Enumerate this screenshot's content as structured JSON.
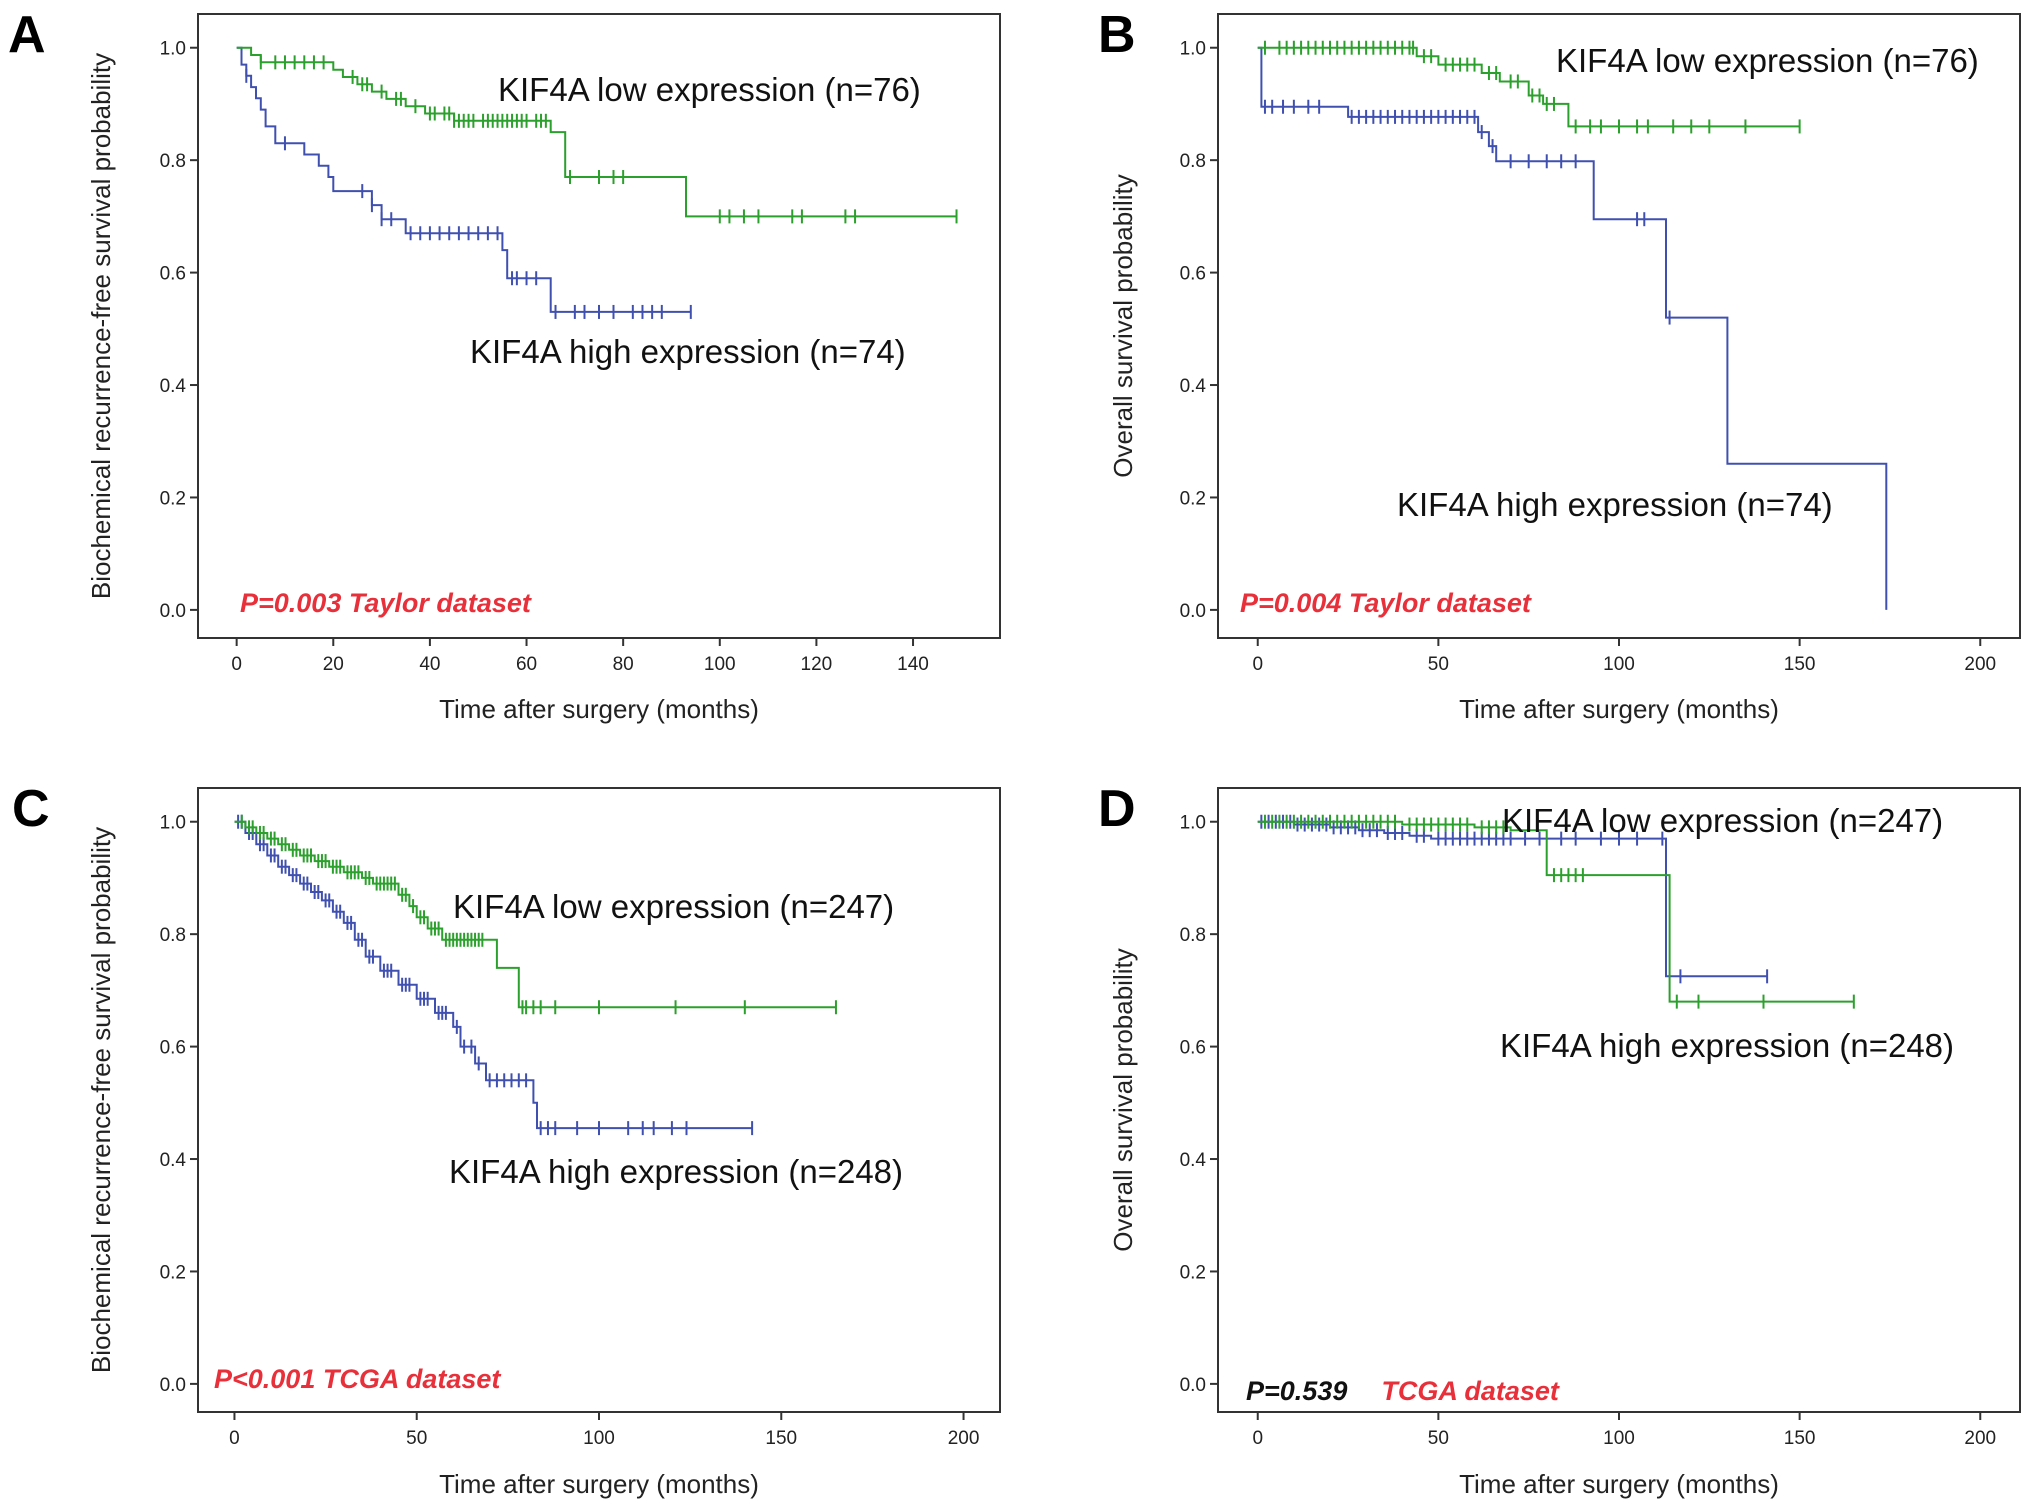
{
  "colors": {
    "low": "#2ca02c",
    "high": "#4050b0",
    "pvalue": "#e8303a",
    "pvalue_black": "#111111"
  },
  "chart_data": [
    {
      "panel": "A",
      "type": "line",
      "step": true,
      "xlabel": "Time after surgery (months)",
      "ylabel": "Biochemical recurrence-free survival probability",
      "xlim": [
        -8,
        158
      ],
      "ylim": [
        -0.05,
        1.06
      ],
      "xticks": [
        0,
        20,
        40,
        60,
        80,
        100,
        120,
        140
      ],
      "yticks": [
        0.0,
        0.2,
        0.4,
        0.6,
        0.8,
        1.0
      ],
      "pvalue_parts": [
        {
          "text": "P=0.003 Taylor dataset",
          "color": "red"
        }
      ],
      "series": [
        {
          "name": "low",
          "label": "KIF4A low expression (n=76)",
          "steps": [
            [
              0,
              1.0
            ],
            [
              3,
              0.987
            ],
            [
              5,
              0.974
            ],
            [
              20,
              0.961
            ],
            [
              22,
              0.948
            ],
            [
              25,
              0.935
            ],
            [
              28,
              0.922
            ],
            [
              31,
              0.909
            ],
            [
              35,
              0.896
            ],
            [
              39,
              0.883
            ],
            [
              45,
              0.87
            ],
            [
              65,
              0.85
            ],
            [
              68,
              0.77
            ],
            [
              93,
              0.7
            ],
            [
              149,
              0.7
            ]
          ],
          "censors": [
            5,
            8,
            10,
            12,
            14,
            16,
            18,
            24,
            26,
            27,
            30,
            33,
            34,
            37,
            40,
            41,
            43,
            44,
            45,
            46,
            47,
            48,
            49,
            51,
            52,
            53,
            54,
            55,
            56,
            57,
            58,
            59,
            60,
            62,
            63,
            64,
            69,
            75,
            78,
            80,
            100,
            102,
            105,
            108,
            115,
            117,
            126,
            128,
            149
          ]
        },
        {
          "name": "high",
          "label": "KIF4A high expression (n=74)",
          "steps": [
            [
              0,
              1.0
            ],
            [
              1,
              0.97
            ],
            [
              2,
              0.95
            ],
            [
              3,
              0.93
            ],
            [
              4,
              0.91
            ],
            [
              5,
              0.89
            ],
            [
              6,
              0.86
            ],
            [
              8,
              0.83
            ],
            [
              14,
              0.81
            ],
            [
              17,
              0.79
            ],
            [
              19,
              0.77
            ],
            [
              20,
              0.745
            ],
            [
              28,
              0.72
            ],
            [
              30,
              0.695
            ],
            [
              35,
              0.67
            ],
            [
              55,
              0.64
            ],
            [
              56,
              0.59
            ],
            [
              65,
              0.53
            ],
            [
              94,
              0.53
            ]
          ],
          "censors": [
            2,
            10,
            26,
            28,
            30,
            32,
            36,
            38,
            40,
            42,
            44,
            46,
            48,
            50,
            52,
            54,
            57,
            58,
            60,
            62,
            66,
            70,
            72,
            75,
            78,
            82,
            84,
            86,
            88,
            94
          ]
        }
      ]
    },
    {
      "panel": "B",
      "type": "line",
      "step": true,
      "xlabel": "Time after surgery (months)",
      "ylabel": "Overall survival probability",
      "xlim": [
        -11,
        211
      ],
      "ylim": [
        -0.05,
        1.06
      ],
      "xticks": [
        0,
        50,
        100,
        150,
        200
      ],
      "yticks": [
        0.0,
        0.2,
        0.4,
        0.6,
        0.8,
        1.0
      ],
      "pvalue_parts": [
        {
          "text": "P=0.004 Taylor dataset",
          "color": "red"
        }
      ],
      "series": [
        {
          "name": "low",
          "label": "KIF4A low expression (n=76)",
          "steps": [
            [
              0,
              1.0
            ],
            [
              44,
              0.985
            ],
            [
              50,
              0.97
            ],
            [
              62,
              0.955
            ],
            [
              67,
              0.94
            ],
            [
              75,
              0.915
            ],
            [
              79,
              0.9
            ],
            [
              86,
              0.86
            ],
            [
              150,
              0.86
            ]
          ],
          "censors": [
            2,
            6,
            8,
            10,
            12,
            14,
            16,
            18,
            20,
            22,
            24,
            26,
            28,
            30,
            32,
            34,
            36,
            38,
            40,
            42,
            43,
            46,
            48,
            52,
            54,
            56,
            58,
            60,
            64,
            66,
            70,
            72,
            76,
            78,
            80,
            82,
            88,
            92,
            95,
            100,
            105,
            108,
            115,
            120,
            125,
            135,
            150
          ]
        },
        {
          "name": "high",
          "label": "KIF4A high expression (n=74)",
          "steps": [
            [
              0,
              1.0
            ],
            [
              1,
              0.895
            ],
            [
              25,
              0.877
            ],
            [
              61,
              0.85
            ],
            [
              64,
              0.825
            ],
            [
              66,
              0.798
            ],
            [
              93,
              0.695
            ],
            [
              113,
              0.52
            ],
            [
              130,
              0.26
            ],
            [
              174,
              0.26
            ],
            [
              174,
              0.0
            ]
          ],
          "censors": [
            2,
            4,
            7,
            10,
            14,
            17,
            26,
            28,
            30,
            32,
            34,
            36,
            38,
            40,
            42,
            44,
            46,
            48,
            50,
            52,
            54,
            56,
            58,
            60,
            62,
            65,
            70,
            75,
            80,
            84,
            88,
            105,
            107,
            114
          ]
        }
      ]
    },
    {
      "panel": "C",
      "type": "line",
      "step": true,
      "xlabel": "Time after surgery (months)",
      "ylabel": "Biochemical recurrence-free survival probability",
      "xlim": [
        -10,
        210
      ],
      "ylim": [
        -0.05,
        1.06
      ],
      "xticks": [
        0,
        50,
        100,
        150,
        200
      ],
      "yticks": [
        0.0,
        0.2,
        0.4,
        0.6,
        0.8,
        1.0
      ],
      "pvalue_parts": [
        {
          "text": "P<0.001  TCGA dataset",
          "color": "red"
        }
      ],
      "series": [
        {
          "name": "low",
          "label": "KIF4A low expression (n=247)",
          "steps": [
            [
              0,
              1.0
            ],
            [
              3,
              0.99
            ],
            [
              6,
              0.98
            ],
            [
              9,
              0.97
            ],
            [
              12,
              0.96
            ],
            [
              15,
              0.95
            ],
            [
              18,
              0.94
            ],
            [
              22,
              0.93
            ],
            [
              26,
              0.92
            ],
            [
              30,
              0.91
            ],
            [
              35,
              0.9
            ],
            [
              38,
              0.89
            ],
            [
              45,
              0.87
            ],
            [
              48,
              0.85
            ],
            [
              50,
              0.83
            ],
            [
              53,
              0.81
            ],
            [
              57,
              0.79
            ],
            [
              72,
              0.74
            ],
            [
              78,
              0.67
            ],
            [
              165,
              0.67
            ]
          ],
          "censors": [
            2,
            4,
            5,
            7,
            8,
            10,
            11,
            13,
            14,
            16,
            17,
            19,
            20,
            21,
            23,
            24,
            25,
            27,
            28,
            29,
            31,
            32,
            33,
            34,
            36,
            37,
            39,
            40,
            41,
            42,
            43,
            44,
            46,
            47,
            49,
            51,
            52,
            54,
            55,
            56,
            58,
            59,
            60,
            61,
            62,
            63,
            64,
            65,
            66,
            67,
            68,
            79,
            80,
            82,
            84,
            88,
            100,
            121,
            140,
            165
          ]
        },
        {
          "name": "high",
          "label": "KIF4A high expression (n=248)",
          "steps": [
            [
              0,
              1.0
            ],
            [
              3,
              0.98
            ],
            [
              6,
              0.96
            ],
            [
              9,
              0.94
            ],
            [
              12,
              0.92
            ],
            [
              15,
              0.905
            ],
            [
              18,
              0.89
            ],
            [
              21,
              0.875
            ],
            [
              24,
              0.86
            ],
            [
              27,
              0.84
            ],
            [
              30,
              0.82
            ],
            [
              33,
              0.79
            ],
            [
              36,
              0.76
            ],
            [
              40,
              0.735
            ],
            [
              45,
              0.71
            ],
            [
              50,
              0.685
            ],
            [
              55,
              0.66
            ],
            [
              60,
              0.635
            ],
            [
              62,
              0.6
            ],
            [
              66,
              0.57
            ],
            [
              69,
              0.54
            ],
            [
              82,
              0.5
            ],
            [
              83,
              0.455
            ],
            [
              142,
              0.455
            ]
          ],
          "censors": [
            1,
            2,
            4,
            5,
            7,
            8,
            10,
            11,
            13,
            14,
            16,
            17,
            19,
            20,
            22,
            23,
            25,
            26,
            28,
            29,
            31,
            32,
            34,
            35,
            37,
            38,
            41,
            42,
            43,
            46,
            47,
            48,
            51,
            52,
            53,
            56,
            57,
            58,
            61,
            63,
            65,
            67,
            70,
            72,
            74,
            76,
            78,
            80,
            84,
            86,
            88,
            94,
            100,
            108,
            112,
            115,
            120,
            124,
            142
          ]
        }
      ]
    },
    {
      "panel": "D",
      "type": "line",
      "step": true,
      "xlabel": "Time after surgery (months)",
      "ylabel": "Overall survival probability",
      "xlim": [
        -11,
        211
      ],
      "ylim": [
        -0.05,
        1.06
      ],
      "xticks": [
        0,
        50,
        100,
        150,
        200
      ],
      "yticks": [
        0.0,
        0.2,
        0.4,
        0.6,
        0.8,
        1.0
      ],
      "pvalue_parts": [
        {
          "text": "P=0.539",
          "color": "black"
        },
        {
          "text": "TCGA dataset",
          "color": "red"
        }
      ],
      "series": [
        {
          "name": "low",
          "label": "KIF4A low expression (n=247)",
          "steps": [
            [
              0,
              1.0
            ],
            [
              40,
              0.995
            ],
            [
              60,
              0.99
            ],
            [
              70,
              0.985
            ],
            [
              80,
              0.905
            ],
            [
              114,
              0.68
            ],
            [
              165,
              0.68
            ]
          ],
          "censors": [
            2,
            4,
            6,
            8,
            10,
            12,
            14,
            16,
            18,
            20,
            22,
            24,
            26,
            28,
            30,
            32,
            34,
            36,
            38,
            42,
            44,
            46,
            48,
            50,
            52,
            54,
            56,
            58,
            62,
            64,
            66,
            68,
            82,
            84,
            86,
            88,
            90,
            116,
            122,
            140,
            165
          ]
        },
        {
          "name": "high",
          "label": "KIF4A high expression (n=248)",
          "steps": [
            [
              0,
              1.0
            ],
            [
              10,
              0.995
            ],
            [
              20,
              0.99
            ],
            [
              28,
              0.985
            ],
            [
              35,
              0.98
            ],
            [
              42,
              0.975
            ],
            [
              48,
              0.97
            ],
            [
              113,
              0.725
            ],
            [
              141,
              0.725
            ]
          ],
          "censors": [
            1,
            3,
            5,
            7,
            9,
            11,
            13,
            15,
            17,
            19,
            21,
            23,
            25,
            27,
            29,
            31,
            33,
            36,
            38,
            40,
            44,
            46,
            50,
            52,
            54,
            56,
            58,
            60,
            62,
            64,
            66,
            68,
            70,
            74,
            78,
            84,
            88,
            95,
            100,
            105,
            112,
            117,
            141
          ]
        }
      ]
    }
  ],
  "panels": {
    "A": {
      "letter": "A",
      "low_label": "KIF4A low expression (n=76)",
      "high_label": "KIF4A high expression (n=74)"
    },
    "B": {
      "letter": "B",
      "low_label": "KIF4A low expression (n=76)",
      "high_label": "KIF4A high expression (n=74)"
    },
    "C": {
      "letter": "C",
      "low_label": "KIF4A low expression (n=247)",
      "high_label": "KIF4A high expression (n=248)"
    },
    "D": {
      "letter": "D",
      "low_label": "KIF4A low expression (n=247)",
      "high_label": "KIF4A high expression (n=248)"
    }
  }
}
